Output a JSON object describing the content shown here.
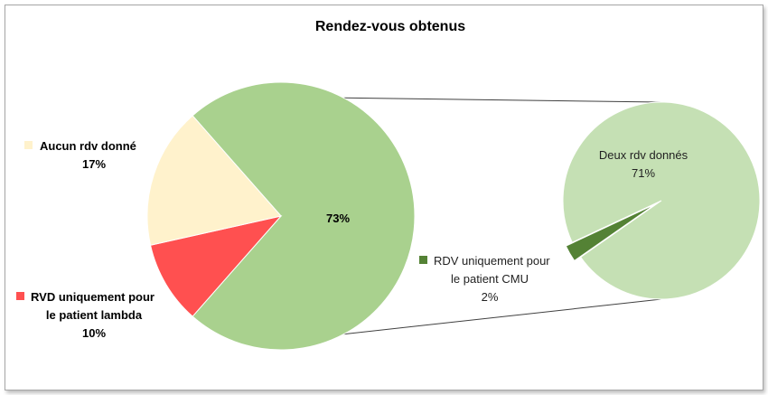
{
  "chart_data": {
    "type": "pie",
    "subtype": "pie-of-pie",
    "title": "Rendez-vous obtenus",
    "main_pie": {
      "slices": [
        {
          "name": "Aucun rdv donné",
          "value": 17,
          "label": "17%",
          "color": "#fff2cc"
        },
        {
          "name": "RVD uniquement pour le patient lambda",
          "value": 10,
          "label": "10%",
          "color": "#ff5050"
        },
        {
          "name": "",
          "value": 73,
          "label": "73%",
          "color": "#a9d18e"
        }
      ]
    },
    "secondary_pie": {
      "slices": [
        {
          "name": "Deux rdv donnés",
          "value": 71,
          "label": "71%",
          "color": "#c5e0b4"
        },
        {
          "name": "RDV uniquement pour le patient CMU",
          "value": 2,
          "label": "2%",
          "color": "#548235"
        }
      ]
    },
    "legend": [
      {
        "lines": [
          "Aucun rdv donné"
        ],
        "value_label": "17%",
        "color": "#fff2cc",
        "bold": true
      },
      {
        "lines": [
          "RVD uniquement pour",
          "le patient lambda"
        ],
        "value_label": "10%",
        "color": "#ff5050",
        "bold": true
      },
      {
        "lines": [
          "RDV uniquement pour",
          "le patient CMU"
        ],
        "value_label": "2%",
        "color": "#548235",
        "bold": false
      }
    ],
    "connector_color": "#404040"
  }
}
